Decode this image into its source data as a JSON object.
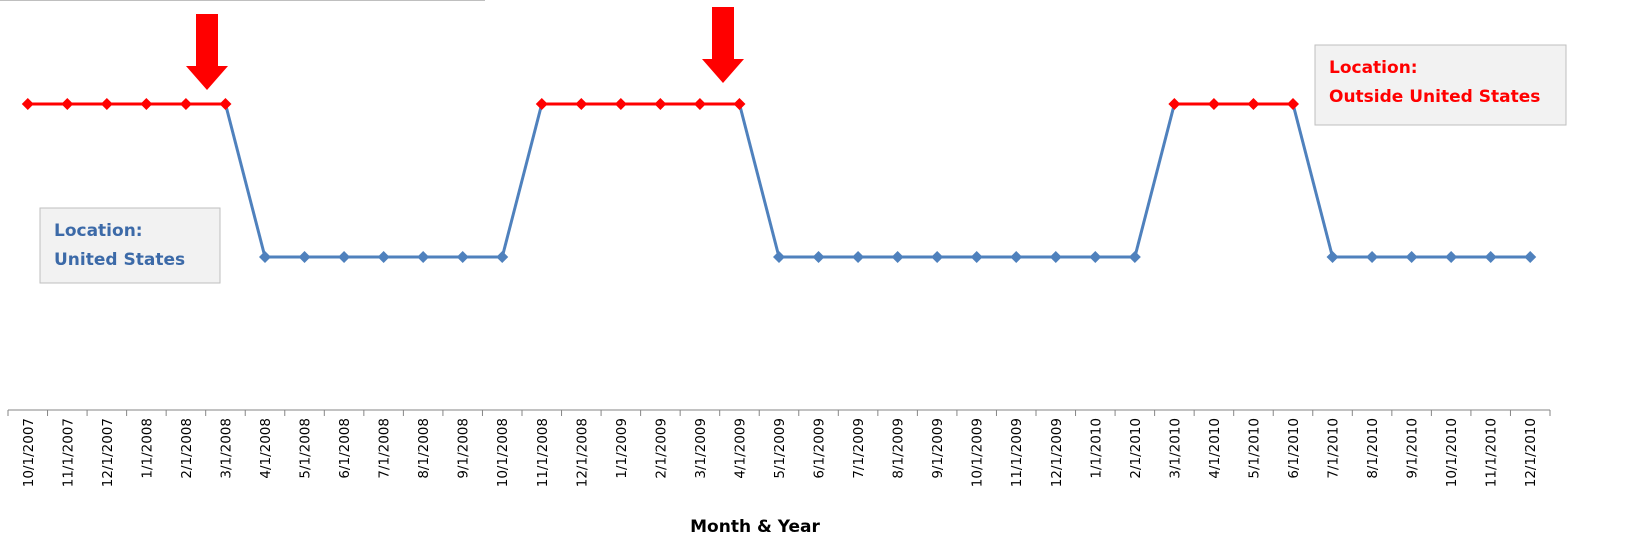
{
  "chart_data": {
    "type": "line",
    "x_label": "Month & Year",
    "categories": [
      "10/1/2007",
      "11/1/2007",
      "12/1/2007",
      "1/1/2008",
      "2/1/2008",
      "3/1/2008",
      "4/1/2008",
      "5/1/2008",
      "6/1/2008",
      "7/1/2008",
      "8/1/2008",
      "9/1/2008",
      "10/1/2008",
      "11/1/2008",
      "12/1/2008",
      "1/1/2009",
      "2/1/2009",
      "3/1/2009",
      "4/1/2009",
      "5/1/2009",
      "6/1/2009",
      "7/1/2009",
      "8/1/2009",
      "9/1/2009",
      "10/1/2009",
      "11/1/2009",
      "12/1/2009",
      "1/1/2010",
      "2/1/2010",
      "3/1/2010",
      "4/1/2010",
      "5/1/2010",
      "6/1/2010",
      "7/1/2010",
      "8/1/2010",
      "9/1/2010",
      "10/1/2010",
      "11/1/2010",
      "12/1/2010"
    ],
    "series": [
      {
        "color": "#4f81bd",
        "high_color": "#ff0000",
        "values": [
          1,
          1,
          1,
          1,
          1,
          1,
          0,
          0,
          0,
          0,
          0,
          0,
          0,
          1,
          1,
          1,
          1,
          1,
          1,
          0,
          0,
          0,
          0,
          0,
          0,
          0,
          0,
          0,
          0,
          1,
          1,
          1,
          1,
          0,
          0,
          0,
          0,
          0,
          0
        ]
      }
    ],
    "ylim": [
      -1,
      1.68
    ],
    "annotations": [
      {
        "lines": [
          "Location:",
          "United States"
        ],
        "color": "#3c6aa8"
      },
      {
        "lines": [
          "Location:",
          "Outside United States"
        ],
        "color": "#ff0000"
      }
    ]
  }
}
